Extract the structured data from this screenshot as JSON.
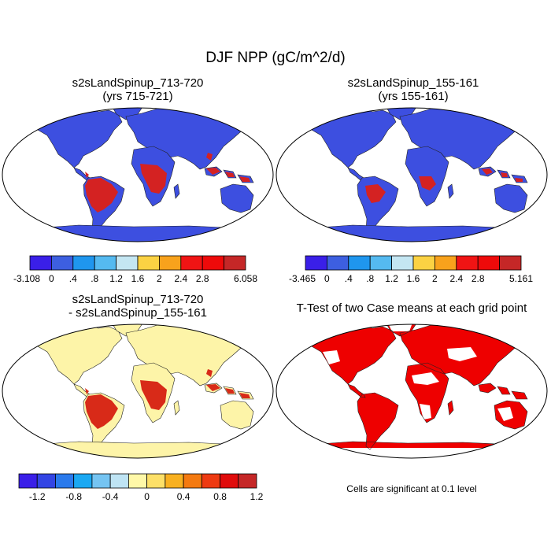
{
  "title": "DJF NPP (gC/m^2/d)",
  "panels": [
    {
      "title_line1": "s2sLandSpinup_713-720",
      "title_line2": "(yrs 715-721)"
    },
    {
      "title_line1": "s2sLandSpinup_155-161",
      "title_line2": "(yrs 155-161)"
    },
    {
      "title_line1": "s2sLandSpinup_713-720",
      "title_line2": "- s2sLandSpinup_155-161"
    },
    {
      "title_line1": "T-Test of two Case means at each grid point"
    }
  ],
  "colorbars": [
    {
      "labels": [
        "-3.108",
        "0",
        ".4",
        ".8",
        "1.2",
        "1.6",
        "2",
        "2.4",
        "2.8",
        "6.058"
      ],
      "colors": [
        "#3a1fe8",
        "#3d5fe0",
        "#1f96ee",
        "#55baf0",
        "#c4e6f2",
        "#fbd243",
        "#f8a21c",
        "#f01414",
        "#ee0a0a",
        "#c52727"
      ]
    },
    {
      "labels": [
        "-3.465",
        "0",
        ".4",
        ".8",
        "1.2",
        "1.6",
        "2",
        "2.4",
        "2.8",
        "5.161"
      ],
      "colors": [
        "#3a1fe8",
        "#3d5fe0",
        "#1f96ee",
        "#55baf0",
        "#c4e6f2",
        "#fbd243",
        "#f8a21c",
        "#f01414",
        "#ee0a0a",
        "#c52727"
      ]
    },
    {
      "labels": [
        "-1.2",
        "-0.8",
        "-0.4",
        "0",
        "0.4",
        "0.8",
        "1.2"
      ],
      "colors": [
        "#3a1fe8",
        "#3345e4",
        "#2a7aec",
        "#1aa8f2",
        "#75c4f2",
        "#bfe4f4",
        "#fff8a8",
        "#fde068",
        "#f8b020",
        "#f47a10",
        "#ee3a12",
        "#e00c0c",
        "#c52727"
      ]
    }
  ],
  "note": "Cells are significant at 0.1 level",
  "colors": {
    "ocean": "#ffffff",
    "p1_land_high": "#d42222",
    "p1_land_low": "#3d4fe0",
    "p2_land": "#3d4fe0",
    "p3_land": "#fdf4a8",
    "p3_high": "#d82a18",
    "p4_sig": "#ee0000"
  }
}
